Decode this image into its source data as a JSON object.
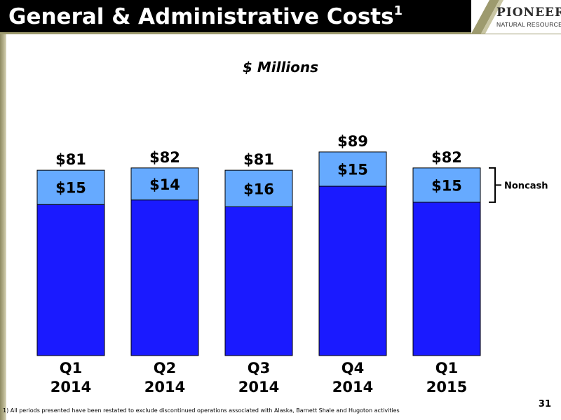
{
  "header": {
    "title": "General & Administrative Costs",
    "title_superscript": "1"
  },
  "logo": {
    "line1": "PIONEER",
    "line2": "NATURAL RESOURCES"
  },
  "colors": {
    "header_bg": "#000000",
    "accent_olive": "#9d9a6e",
    "bar_cash": "#1a1aff",
    "bar_noncash": "#66aaff"
  },
  "chart_data": {
    "type": "bar",
    "stacked": true,
    "title": "$ Millions",
    "categories": [
      [
        "Q1",
        "2014"
      ],
      [
        "Q2",
        "2014"
      ],
      [
        "Q3",
        "2014"
      ],
      [
        "Q4",
        "2014"
      ],
      [
        "Q1",
        "2015"
      ]
    ],
    "series": [
      {
        "values": [
          66,
          68,
          65,
          74,
          67
        ],
        "color": "#1a1aff"
      },
      {
        "name": "Noncash",
        "values": [
          15,
          14,
          16,
          15,
          15
        ],
        "color": "#66aaff"
      }
    ],
    "segment_labels": [
      "$15",
      "$14",
      "$16",
      "$15",
      "$15"
    ],
    "total_labels": [
      "$81",
      "$82",
      "$81",
      "$89",
      "$82"
    ],
    "ylim": [
      0,
      89
    ],
    "grid": false,
    "annotation": {
      "text": "Noncash",
      "bar_index": 4,
      "series_index": 1
    }
  },
  "footnote": "1) All periods presented have been restated to exclude discontinued operations associated with Alaska, Barnett Shale and Hugoton activities",
  "page_number": "31"
}
